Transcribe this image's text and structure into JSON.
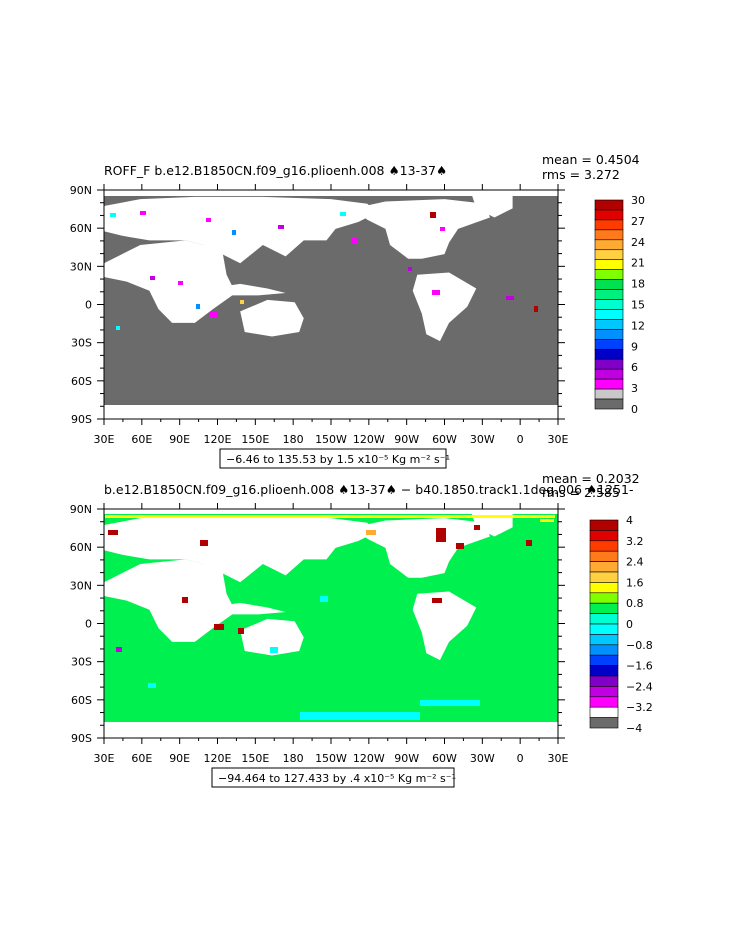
{
  "colors": {
    "land_mask": "#ffffff",
    "ocean_top": "#6b6b6b",
    "ocean_bottom": "#00f050",
    "coast_cyan": "#00e8e8",
    "coast_red": "#b00000",
    "coast_magenta": "#ff00ff",
    "coast_yellow": "#ffff00"
  },
  "panels": [
    {
      "title": "ROFF_F b.e12.B1850CN.f09_g16.plioenh.008 ♠13-37♠",
      "mean_label": "mean = 0.4504",
      "rms_label": "rms = 3.272",
      "range_label": "−6.46 to 135.53 by 1.5 x10⁻⁵ Kg m⁻² s⁻¹",
      "x_ticks": [
        "30E",
        "60E",
        "90E",
        "120E",
        "150E",
        "180",
        "150W",
        "120W",
        "90W",
        "60W",
        "30W",
        "0",
        "30E"
      ],
      "y_ticks": [
        "90N",
        "60N",
        "30N",
        "0",
        "30S",
        "60S",
        "90S"
      ],
      "colorbar": {
        "labels": [
          "30",
          "27",
          "24",
          "21",
          "18",
          "15",
          "12",
          "9",
          "6",
          "3",
          "0"
        ],
        "colors": [
          "#b00000",
          "#e00000",
          "#ff3c00",
          "#ff7a1a",
          "#ffaa33",
          "#ffd040",
          "#ffff00",
          "#80ff00",
          "#00e050",
          "#00f080",
          "#00ffd0",
          "#00ffff",
          "#00c8ff",
          "#0090ff",
          "#0040ff",
          "#0000c8",
          "#8000c8",
          "#c000e0",
          "#ff00ff",
          "#c8c8c8",
          "#6b6b6b"
        ]
      }
    },
    {
      "title": "b.e12.B1850CN.f09_g16.plioenh.008 ♠13-37♠ − b40.1850.track1.1deg.006 ♠1251-",
      "mean_label": "mean = 0.2032",
      "rms_label": "rms = 2.585",
      "range_label": "−94.464 to 127.433 by .4 x10⁻⁵ Kg m⁻² s⁻¹",
      "x_ticks": [
        "30E",
        "60E",
        "90E",
        "120E",
        "150E",
        "180",
        "150W",
        "120W",
        "90W",
        "60W",
        "30W",
        "0",
        "30E"
      ],
      "y_ticks": [
        "90N",
        "60N",
        "30N",
        "0",
        "30S",
        "60S",
        "90S"
      ],
      "colorbar": {
        "labels": [
          "4",
          "3.2",
          "2.4",
          "1.6",
          "0.8",
          "0",
          "−0.8",
          "−1.6",
          "−2.4",
          "−3.2",
          "−4"
        ],
        "colors": [
          "#b00000",
          "#e00000",
          "#ff3c00",
          "#ff7a1a",
          "#ffaa33",
          "#ffd040",
          "#ffff00",
          "#80ff00",
          "#00f050",
          "#00ffd0",
          "#00ffff",
          "#00c8ff",
          "#0090ff",
          "#0040ff",
          "#0000c8",
          "#8000c8",
          "#c000e0",
          "#ff00ff",
          "#ffffff",
          "#6b6b6b"
        ]
      }
    }
  ]
}
